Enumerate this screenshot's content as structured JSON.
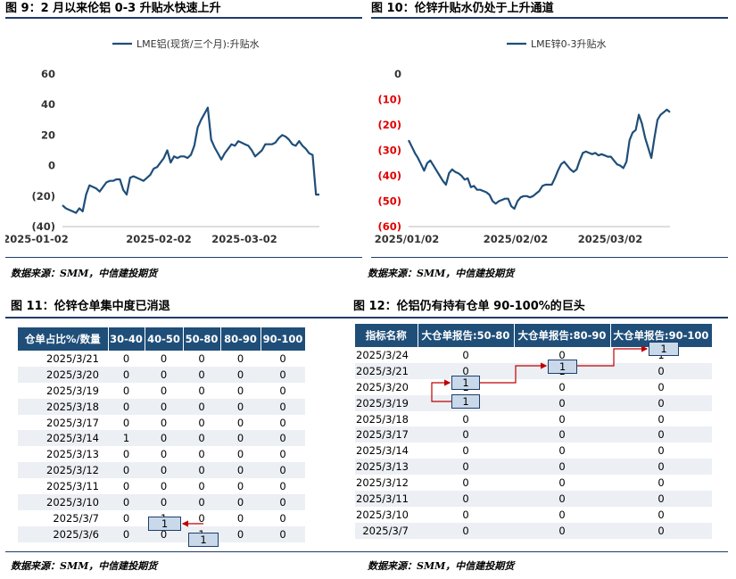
{
  "fig9": {
    "title": "图 9：2 月以来伦铝 0-3 升贴水快速上升",
    "source": "数据来源：SMM，中信建投期货",
    "chart_data": {
      "type": "line",
      "title": "",
      "xlabel": "",
      "ylabel": "",
      "ylim": [
        -40,
        60
      ],
      "grid": false,
      "legend": "top-center",
      "yticks": [
        60,
        40,
        20,
        0,
        -20,
        -40
      ],
      "ytick_labels": [
        "60",
        "40",
        "20",
        "0",
        "(20)",
        "(40)"
      ],
      "xtick_labels": [
        "2025-01-02",
        "2025-02-02",
        "2025-03-02"
      ],
      "series": [
        {
          "name": "LME铝(现货/三个月):升贴水",
          "color": "#1f4e79",
          "values": [
            -26,
            -28,
            -29,
            -30,
            -31,
            -28,
            -30,
            -19,
            -13,
            -14,
            -15,
            -17,
            -14,
            -11,
            -10,
            -10,
            -9,
            -9,
            -16,
            -19,
            -8,
            -7,
            -8,
            -9,
            -10,
            -8,
            -6,
            -2,
            -1,
            2,
            5,
            10,
            2,
            6,
            5,
            6,
            6,
            5,
            7,
            13,
            25,
            30,
            34,
            38,
            17,
            12,
            8,
            4,
            8,
            11,
            14,
            13,
            16,
            15,
            14,
            13,
            10,
            6,
            8,
            10,
            14,
            14,
            14,
            15,
            18,
            20,
            19,
            17,
            14,
            13,
            16,
            13,
            11,
            8,
            7,
            -19,
            -19
          ]
        }
      ]
    }
  },
  "fig10": {
    "title": "图 10：伦锌升贴水仍处于上升通道",
    "source": "数据来源：SMM，中信建投期货",
    "chart_data": {
      "type": "line",
      "title": "",
      "xlabel": "",
      "ylabel": "",
      "ylim": [
        -60,
        0
      ],
      "grid": false,
      "legend": "top-center",
      "yticks": [
        0,
        -10,
        -20,
        -30,
        -40,
        -50,
        -60
      ],
      "ytick_labels": [
        "0",
        "(10)",
        "(20)",
        "(30)",
        "(40)",
        "(50)",
        "(60)"
      ],
      "xtick_labels": [
        "2025/01/02",
        "2025/02/02",
        "2025/03/02"
      ],
      "series": [
        {
          "name": "LME锌0-3升贴水",
          "color": "#1f4e79",
          "values": [
            -26,
            -28.5,
            -31,
            -33,
            -35.5,
            -38,
            -35,
            -34,
            -36,
            -38,
            -40,
            -42,
            -43.5,
            -39,
            -37.5,
            -38.5,
            -39,
            -40,
            -41.5,
            -41,
            -44.5,
            -44,
            -45.5,
            -45.5,
            -46,
            -46.5,
            -47.5,
            -50,
            -51,
            -50,
            -49.5,
            -49,
            -49,
            -52,
            -53,
            -50,
            -48.5,
            -48,
            -48,
            -48.5,
            -48,
            -47,
            -46,
            -44,
            -43.5,
            -43.5,
            -43.5,
            -41,
            -38,
            -35.5,
            -34.5,
            -36,
            -37.5,
            -38.5,
            -37.5,
            -34,
            -31,
            -30.5,
            -31,
            -31.5,
            -31,
            -32,
            -31.5,
            -32,
            -32.5,
            -32.5,
            -34,
            -35.5,
            -36,
            -37,
            -34.5,
            -26,
            -23,
            -22,
            -16,
            -19.5,
            -25,
            -29,
            -33,
            -25,
            -18,
            -16,
            -15,
            -14,
            -15
          ]
        }
      ]
    }
  },
  "fig11": {
    "title": "图 11：伦锌仓单集中度已消退",
    "source": "数据来源：SMM，中信建投期货",
    "headers": [
      "仓单占比%/数量",
      "30-40",
      "40-50",
      "50-80",
      "80-90",
      "90-100"
    ],
    "rows": [
      [
        "2025/3/21",
        "0",
        "0",
        "0",
        "0",
        "0"
      ],
      [
        "2025/3/20",
        "0",
        "0",
        "0",
        "0",
        "0"
      ],
      [
        "2025/3/19",
        "0",
        "0",
        "0",
        "0",
        "0"
      ],
      [
        "2025/3/18",
        "0",
        "0",
        "0",
        "0",
        "0"
      ],
      [
        "2025/3/17",
        "0",
        "0",
        "0",
        "0",
        "0"
      ],
      [
        "2025/3/14",
        "1",
        "0",
        "0",
        "0",
        "0"
      ],
      [
        "2025/3/13",
        "0",
        "0",
        "0",
        "0",
        "0"
      ],
      [
        "2025/3/12",
        "0",
        "0",
        "0",
        "0",
        "0"
      ],
      [
        "2025/3/11",
        "0",
        "0",
        "0",
        "0",
        "0"
      ],
      [
        "2025/3/10",
        "0",
        "0",
        "0",
        "0",
        "0"
      ],
      [
        "2025/3/7",
        "0",
        "1",
        "0",
        "0",
        "0"
      ],
      [
        "2025/3/6",
        "0",
        "0",
        "1",
        "0",
        "0"
      ]
    ]
  },
  "fig12": {
    "title": "图 12：伦铝仍有持有仓单 90-100%的巨头",
    "source": "数据来源：SMM，中信建投期货",
    "headers": [
      "指标名称",
      "大仓单报告:50-80",
      "大仓单报告:80-90",
      "大仓单报告:90-100"
    ],
    "rows": [
      [
        "2025/3/24",
        "0",
        "0",
        "1"
      ],
      [
        "2025/3/21",
        "0",
        "1",
        "0"
      ],
      [
        "2025/3/20",
        "1",
        "0",
        "0"
      ],
      [
        "2025/3/19",
        "1",
        "0",
        "0"
      ],
      [
        "2025/3/18",
        "0",
        "0",
        "0"
      ],
      [
        "2025/3/17",
        "0",
        "0",
        "0"
      ],
      [
        "2025/3/14",
        "0",
        "0",
        "0"
      ],
      [
        "2025/3/13",
        "0",
        "0",
        "0"
      ],
      [
        "2025/3/12",
        "0",
        "0",
        "0"
      ],
      [
        "2025/3/11",
        "0",
        "0",
        "0"
      ],
      [
        "2025/3/10",
        "0",
        "0",
        "0"
      ],
      [
        "2025/3/7",
        "0",
        "0",
        "0"
      ]
    ]
  }
}
